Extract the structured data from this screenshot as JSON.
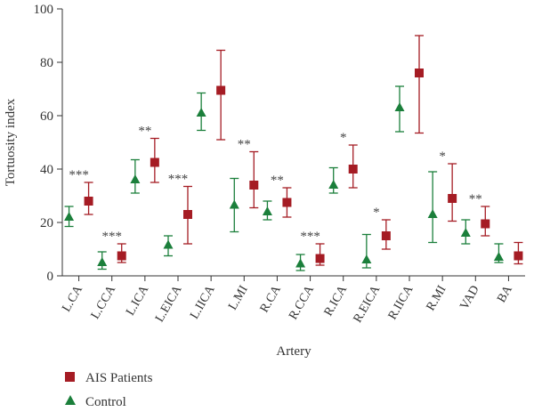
{
  "chart_data": {
    "type": "scatter",
    "xlabel": "Artery",
    "ylabel": "Tortuosity index",
    "ylim": [
      0,
      100
    ],
    "yticks": [
      0,
      20,
      40,
      60,
      80,
      100
    ],
    "categories": [
      "L.CA",
      "L.CCA",
      "L.ICA",
      "L.EICA",
      "L.IICA",
      "L.MI",
      "R.CA",
      "R.CCA",
      "R.ICA",
      "R.EICA",
      "R.IICA",
      "R.MI",
      "VAD",
      "BA"
    ],
    "series": [
      {
        "name": "AIS Patients",
        "marker": "square",
        "color": "#a51c24",
        "values": [
          28,
          7.5,
          42.5,
          23,
          69.5,
          34,
          27.5,
          6.5,
          40,
          15,
          76,
          29,
          19.5,
          7.5
        ],
        "upper": [
          35,
          12,
          51.5,
          33.5,
          84.5,
          46.5,
          33,
          12,
          49,
          21,
          90,
          42,
          26,
          12.5
        ],
        "lower": [
          23,
          5,
          35,
          12,
          51,
          25.5,
          22,
          4,
          33,
          10,
          53.5,
          20.5,
          15,
          4.5
        ]
      },
      {
        "name": "Control",
        "marker": "triangle",
        "color": "#1b7f3b",
        "values": [
          22,
          5,
          36,
          11.5,
          61,
          26.5,
          24,
          4.5,
          34,
          6,
          63,
          23,
          16,
          7
        ],
        "upper": [
          26,
          9,
          43.5,
          15,
          68.5,
          36.5,
          28,
          8,
          40.5,
          15.5,
          71,
          39,
          21,
          12
        ],
        "lower": [
          18.5,
          2.5,
          31,
          7.5,
          54.5,
          16.5,
          21,
          2,
          31,
          3,
          54,
          12.5,
          12,
          5
        ]
      }
    ],
    "significance": [
      "***",
      "***",
      "**",
      "***",
      "",
      "**",
      "**",
      "***",
      "*",
      "*",
      "",
      "*",
      "**",
      ""
    ],
    "legend_position": "bottom-left",
    "grid": false
  }
}
